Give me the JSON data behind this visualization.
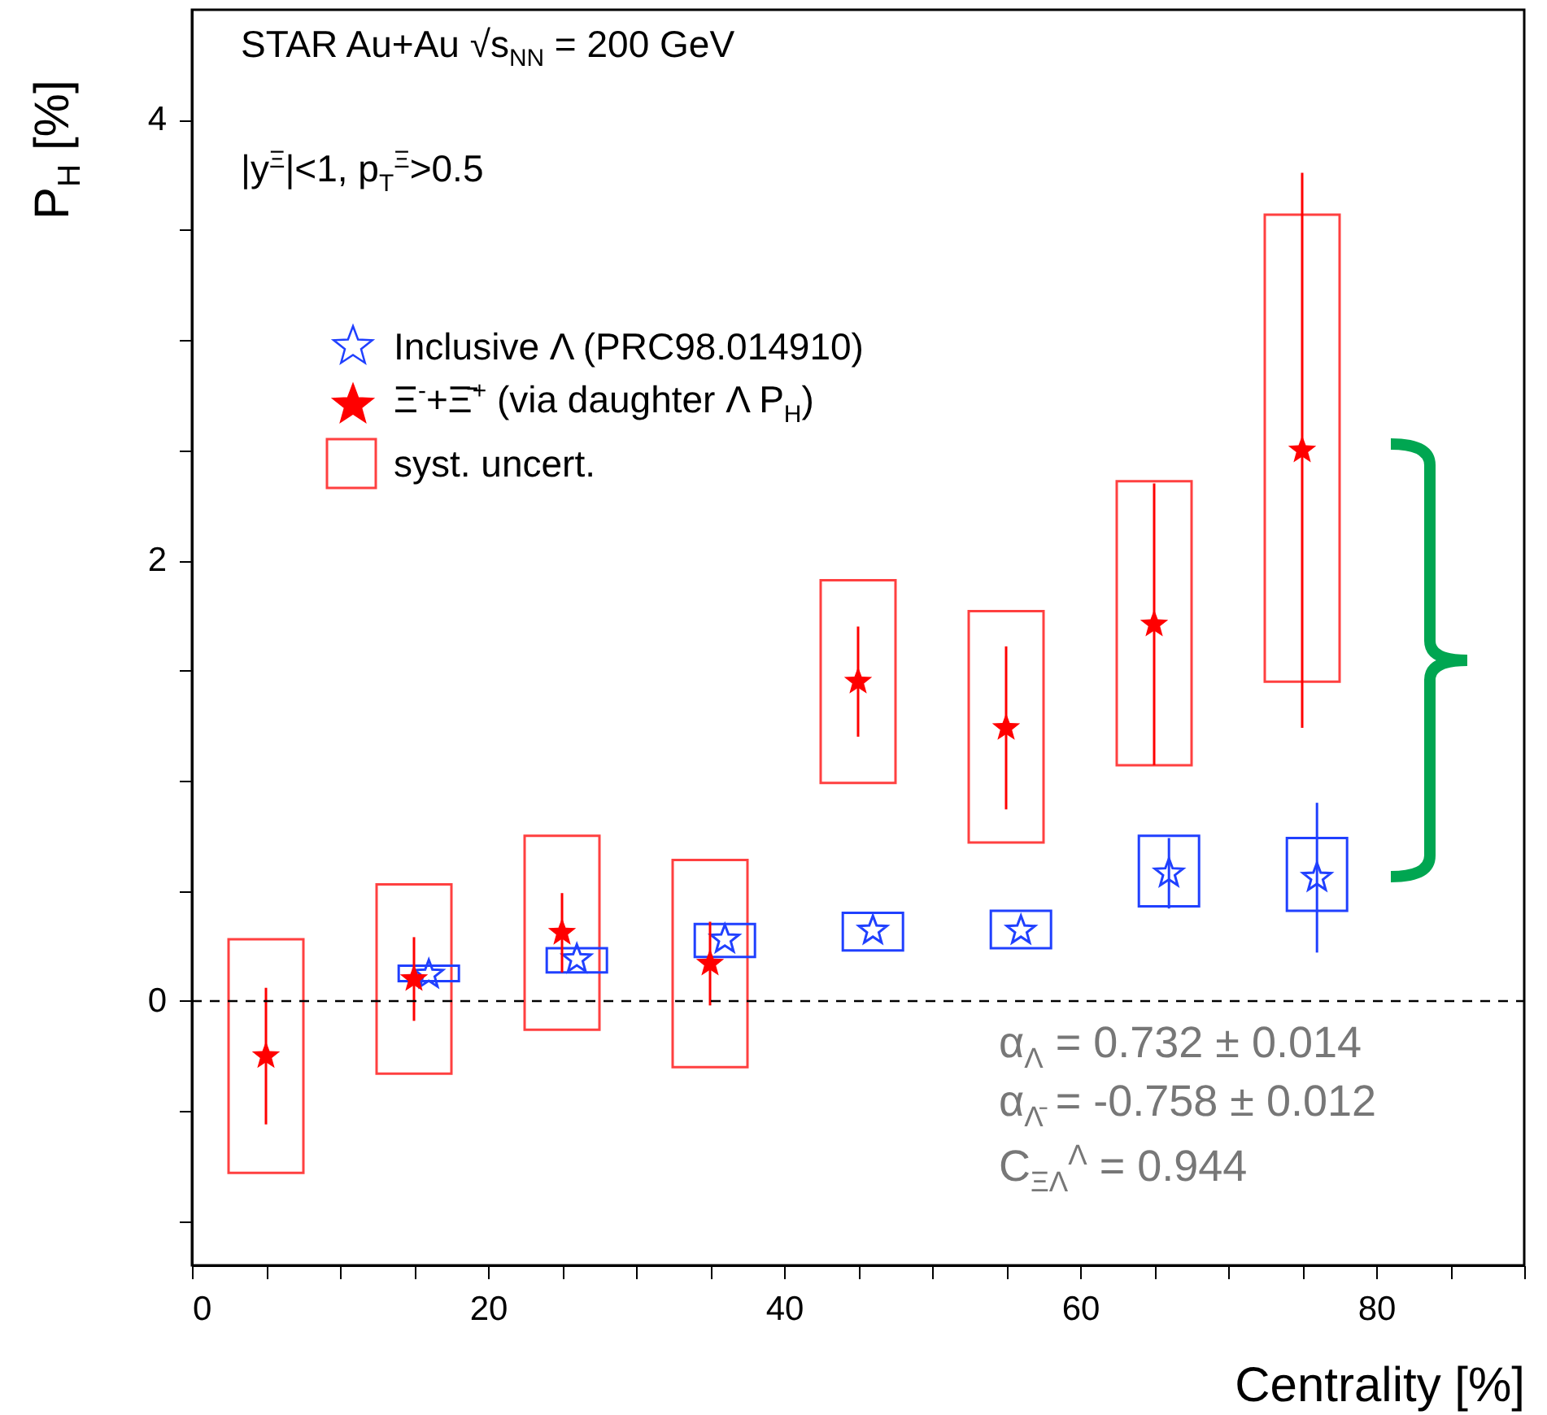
{
  "chart_data": {
    "type": "scatter",
    "xlabel": "Centrality [%]",
    "ylabel": "P$_{H}$ [%]",
    "xlim": [
      0,
      90
    ],
    "ylim": [
      -1.2,
      4.5
    ],
    "xticks": [
      0,
      {
        "value": 5,
        "label": null
      },
      {
        "value": 10,
        "label": null
      },
      {
        "value": 15,
        "label": null
      },
      20,
      {
        "value": 25,
        "label": null
      },
      {
        "value": 30,
        "label": null
      },
      {
        "value": 35,
        "label": null
      },
      40,
      {
        "value": 45,
        "label": null
      },
      {
        "value": 50,
        "label": null
      },
      {
        "value": 55,
        "label": null
      },
      60,
      {
        "value": 65,
        "label": null
      },
      {
        "value": 70,
        "label": null
      },
      {
        "value": 75,
        "label": null
      },
      80,
      {
        "value": 85,
        "label": null
      },
      {
        "value": 90,
        "label": null
      }
    ],
    "yticks": [
      {
        "value": -1,
        "label": null
      },
      {
        "value": -0.5,
        "label": null
      },
      0,
      {
        "value": 0.5,
        "label": null
      },
      {
        "value": 1,
        "label": null
      },
      {
        "value": 1.5,
        "label": null
      },
      2,
      {
        "value": 2.5,
        "label": null
      },
      {
        "value": 3,
        "label": null
      },
      {
        "value": 3.5,
        "label": null
      },
      4
    ],
    "legend": "top left",
    "marker": "star",
    "series": [
      {
        "name": "Inclusive Λ (PRC98.014910)",
        "color": "#2040ff",
        "x": [
          16,
          26,
          36,
          46,
          56,
          66,
          76
        ],
        "values": [
          0.12,
          0.19,
          0.28,
          0.32,
          0.32,
          0.58,
          0.56
        ],
        "errors": [
          null,
          null,
          null,
          null,
          null,
          0.16,
          0.34
        ]
      },
      {
        "name": "Ξ$^{-}$+Ξ̄$^{+}$  (via daughter Λ P$_{H}$)",
        "color": "#ff0000",
        "x": [
          5,
          15,
          25,
          35,
          45,
          55,
          65,
          75
        ],
        "values": [
          -0.25,
          0.1,
          0.31,
          0.17,
          1.45,
          1.24,
          1.71,
          2.5
        ],
        "errors": [
          0.31,
          0.19,
          0.18,
          0.19,
          0.25,
          0.37,
          0.64,
          1.26
        ]
      },
      {
        "name": "syst. uncert.",
        "type": "bar",
        "color": "#ff4040",
        "x": [
          5,
          15,
          25,
          35,
          45,
          55,
          65,
          75
        ],
        "base": [
          -0.78,
          -0.33,
          -0.13,
          -0.3,
          0.99,
          0.72,
          1.07,
          1.45
        ],
        "values": [
          1.06,
          0.86,
          0.88,
          0.94,
          0.92,
          1.05,
          1.29,
          2.12
        ]
      },
      {
        "type": "bar",
        "color": "#2040ff",
        "x": [
          16,
          26,
          36,
          46,
          56,
          66,
          76
        ],
        "base": [
          0.09,
          0.13,
          0.2,
          0.23,
          0.24,
          0.43,
          0.41
        ],
        "values": [
          0.07,
          0.11,
          0.15,
          0.17,
          0.17,
          0.32,
          0.33
        ]
      }
    ],
    "ref_lines": [
      {
        "axis": "y",
        "value": 0,
        "line_style": "dashed",
        "color": "#000000"
      }
    ],
    "annotations": [
      "STAR  Au+Au √s$_{NN}$ = 200 GeV",
      "|y$^{Ξ}$|<1, p$_{T}$$^{Ξ}$>0.5",
      "α$_{Λ}$ =  0.732 ± 0.014",
      "α$_{Λ̄}$ = -0.758 ± 0.012",
      "C$_{ΞΛ}$$^{Λ}$ = 0.944"
    ]
  }
}
